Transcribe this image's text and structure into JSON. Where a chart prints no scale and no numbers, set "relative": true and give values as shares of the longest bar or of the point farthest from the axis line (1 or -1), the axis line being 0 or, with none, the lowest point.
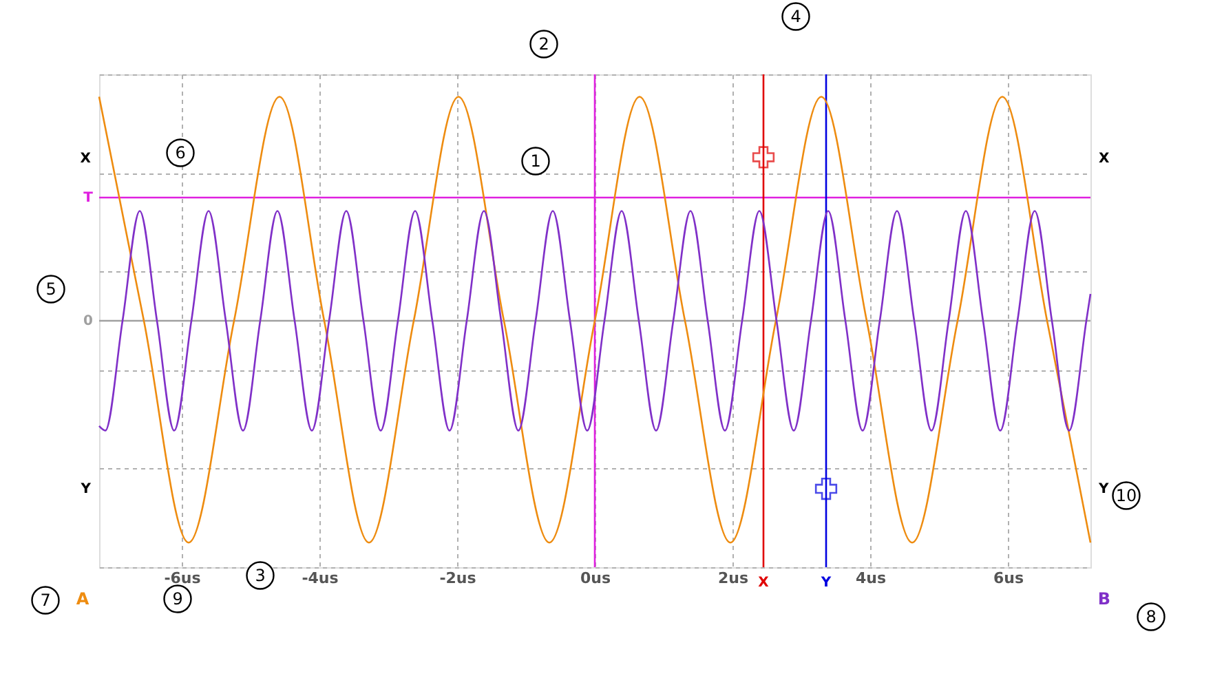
{
  "chart_data": {
    "type": "line",
    "relative": true,
    "xlim": [
      -7.2,
      7.2
    ],
    "xticks": [
      {
        "value": -6,
        "label": "-6us"
      },
      {
        "value": -4,
        "label": "-4us"
      },
      {
        "value": -2,
        "label": "-2us"
      },
      {
        "value": 0,
        "label": "0us"
      },
      {
        "value": 2,
        "label": "2us"
      },
      {
        "value": 4,
        "label": "4us"
      },
      {
        "value": 6,
        "label": "6us"
      }
    ],
    "grid": true,
    "tick_labels": "x",
    "line_style": "solid",
    "series": [
      {
        "name": "A",
        "color": "#ee8c10",
        "x": [
          -7.2,
          -6.55,
          -5.9,
          -5.24,
          -4.58,
          -3.93,
          -3.28,
          -2.63,
          -1.98,
          -1.32,
          -0.66,
          0,
          0.65,
          1.31,
          1.97,
          2.63,
          3.29,
          3.95,
          4.61,
          5.27,
          5.92,
          6.57,
          7.2
        ],
        "values": [
          1,
          0,
          -0.99,
          0,
          1,
          0,
          -0.99,
          0,
          1,
          0,
          -0.99,
          0,
          1,
          0,
          -0.99,
          0,
          1,
          0,
          -0.99,
          0,
          1,
          0,
          -0.99
        ]
      },
      {
        "name": "B",
        "color": "#8030c8",
        "x": [
          -7.2,
          -7.11,
          -6.86,
          -6.61,
          -6.36,
          -6.11,
          -5.86,
          -5.61,
          -5.36,
          -5.11,
          -4.86,
          -4.61,
          -4.36,
          -4.11,
          -3.86,
          -3.61,
          -3.36,
          -3.11,
          -2.86,
          -2.61,
          -2.36,
          -2.11,
          -1.86,
          -1.61,
          -1.36,
          -1.11,
          -0.86,
          -0.61,
          -0.36,
          -0.11,
          0.14,
          0.39,
          0.64,
          0.89,
          1.14,
          1.39,
          1.64,
          1.89,
          2.14,
          2.39,
          2.64,
          2.89,
          3.14,
          3.39,
          3.64,
          3.89,
          4.14,
          4.39,
          4.64,
          4.89,
          5.14,
          5.39,
          5.64,
          5.89,
          6.14,
          6.39,
          6.64,
          6.89,
          7.14,
          7.2
        ],
        "values": [
          -0.47,
          -0.49,
          0,
          0.49,
          0,
          -0.49,
          0,
          0.49,
          0,
          -0.49,
          0,
          0.49,
          0,
          -0.49,
          0,
          0.49,
          0,
          -0.49,
          0,
          0.49,
          0,
          -0.49,
          0,
          0.49,
          0,
          -0.49,
          0,
          0.49,
          0,
          -0.49,
          0,
          0.49,
          0,
          -0.49,
          0,
          0.49,
          0,
          -0.49,
          0,
          0.49,
          0,
          -0.49,
          0,
          0.49,
          0,
          -0.49,
          0,
          0.49,
          0,
          -0.49,
          0,
          0.49,
          0,
          -0.49,
          0,
          0.49,
          0,
          -0.49,
          0,
          0.12
        ]
      },
      {
        "type": "scatter",
        "marker": "cross",
        "color": "#e00000",
        "x": [
          2.45
        ],
        "values": [
          0.73
        ]
      },
      {
        "type": "scatter",
        "marker": "cross",
        "color": "#0000e0",
        "x": [
          3.36
        ],
        "values": [
          -0.75
        ]
      }
    ],
    "ref_lines": [
      {
        "axis": "y",
        "value": 0,
        "label": "0",
        "color": "#a0a0a0"
      },
      {
        "axis": "y",
        "value": 0.55,
        "label": "T",
        "color": "#e020e0"
      },
      {
        "axis": "x",
        "value": 0,
        "label": null,
        "color": "#e020e0"
      },
      {
        "axis": "x",
        "value": 2.45,
        "label": "X",
        "color": "#e00000"
      },
      {
        "axis": "x",
        "value": 3.36,
        "label": "Y",
        "color": "#0000e0"
      }
    ],
    "annotations": [
      "1",
      "2",
      "3",
      "4",
      "5",
      "6",
      "7",
      "8",
      "9",
      "10",
      "X",
      "X",
      "Y",
      "Y"
    ]
  }
}
